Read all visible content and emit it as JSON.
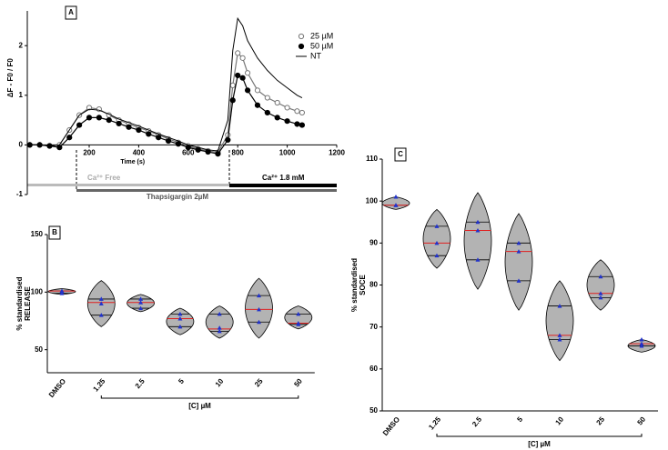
{
  "chart_data": [
    {
      "type": "line",
      "label": "A",
      "ylabel": "ΔF - F0 / F0",
      "xlabel": "Time (s)",
      "xlim": [
        -50,
        1200
      ],
      "xticks": [
        200,
        400,
        600,
        800,
        1000,
        1200
      ],
      "ylim": [
        -1,
        2.7
      ],
      "yticks": [
        -1,
        0,
        1,
        2
      ],
      "annotations": [
        "Ca²⁺ Free",
        "Thapsigargin 2µM",
        "Ca²⁺ 1.8 mM"
      ],
      "x": [
        -40,
        0,
        40,
        80,
        120,
        160,
        200,
        240,
        280,
        320,
        360,
        400,
        440,
        480,
        520,
        560,
        600,
        640,
        680,
        720,
        760,
        780,
        800,
        820,
        840,
        880,
        920,
        960,
        1000,
        1040,
        1060
      ],
      "series": [
        {
          "name": "25 µM",
          "color": "#777777",
          "marker": "open",
          "values": [
            0,
            0,
            -0.02,
            0,
            0.3,
            0.6,
            0.75,
            0.72,
            0.6,
            0.5,
            0.42,
            0.35,
            0.28,
            0.2,
            0.12,
            0.05,
            -0.02,
            -0.08,
            -0.12,
            -0.15,
            0.2,
            1.2,
            1.85,
            1.75,
            1.45,
            1.1,
            0.95,
            0.85,
            0.75,
            0.68,
            0.65
          ]
        },
        {
          "name": "50 µM",
          "color": "#000000",
          "marker": "filled",
          "values": [
            0,
            0,
            -0.02,
            -0.05,
            0.15,
            0.4,
            0.55,
            0.55,
            0.5,
            0.43,
            0.36,
            0.3,
            0.22,
            0.15,
            0.08,
            0.02,
            -0.05,
            -0.1,
            -0.14,
            -0.18,
            0.1,
            0.9,
            1.4,
            1.35,
            1.1,
            0.8,
            0.65,
            0.55,
            0.48,
            0.42,
            0.4
          ]
        },
        {
          "name": "NT",
          "color": "#000000",
          "marker": "none",
          "values": [
            0,
            0,
            -0.02,
            0,
            0.3,
            0.6,
            0.72,
            0.7,
            0.62,
            0.52,
            0.45,
            0.38,
            0.3,
            0.22,
            0.15,
            0.08,
            0,
            -0.05,
            -0.1,
            -0.12,
            0.5,
            1.9,
            2.55,
            2.4,
            2.1,
            1.75,
            1.5,
            1.3,
            1.15,
            1.0,
            0.95
          ]
        }
      ]
    },
    {
      "type": "violin",
      "label": "B",
      "ylabel": [
        "% standardised",
        "RELEASE"
      ],
      "group_label": "[C] µM",
      "ylim": [
        30,
        150
      ],
      "yticks": [
        50,
        100,
        150
      ],
      "categories": [
        "DMSO",
        "1.25",
        "2.5",
        "5",
        "10",
        "25",
        "50"
      ],
      "points": [
        [
          101,
          99,
          101
        ],
        [
          94,
          90,
          80
        ],
        [
          94,
          91,
          86
        ],
        [
          81,
          77,
          70
        ],
        [
          81,
          69,
          66
        ],
        [
          97,
          85,
          74
        ],
        [
          81,
          73,
          72
        ]
      ],
      "medians": [
        101,
        91,
        91,
        77,
        68,
        85,
        73
      ],
      "extents": [
        [
          98,
          103
        ],
        [
          70,
          110
        ],
        [
          83,
          98
        ],
        [
          63,
          86
        ],
        [
          60,
          88
        ],
        [
          60,
          112
        ],
        [
          68,
          88
        ]
      ],
      "color": "#b3b3b3",
      "point_color": "#2233cc",
      "median_color": "#e02020"
    },
    {
      "type": "violin",
      "label": "C",
      "ylabel": [
        "% standardised",
        "SOCE"
      ],
      "group_label": "[C] µM",
      "ylim": [
        50,
        110
      ],
      "yticks": [
        50,
        60,
        70,
        80,
        90,
        100,
        110
      ],
      "categories": [
        "DMSO",
        "1.25",
        "2.5",
        "5",
        "10",
        "25",
        "50"
      ],
      "points": [
        [
          101,
          99,
          99
        ],
        [
          94,
          90,
          87
        ],
        [
          95,
          93,
          86
        ],
        [
          90,
          88,
          81
        ],
        [
          75,
          68,
          67
        ],
        [
          82,
          78,
          77
        ],
        [
          67,
          66,
          65.5
        ]
      ],
      "medians": [
        99,
        90,
        93,
        88,
        68,
        78,
        66
      ],
      "extents": [
        [
          98,
          101
        ],
        [
          84,
          98
        ],
        [
          79,
          102
        ],
        [
          74,
          97
        ],
        [
          62,
          81
        ],
        [
          74,
          86
        ],
        [
          64,
          67
        ]
      ],
      "color": "#b3b3b3",
      "point_color": "#2233cc",
      "median_color": "#e02020"
    }
  ]
}
